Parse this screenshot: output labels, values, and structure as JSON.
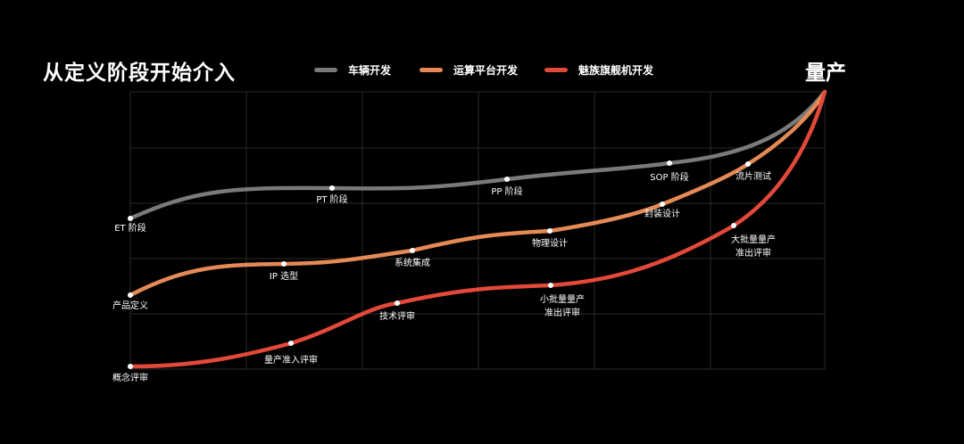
{
  "title": "从定义阶段开始介入",
  "end_label": "量产",
  "colors": {
    "grid": "#2a2a2a",
    "dot": "#ffffff"
  },
  "series": [
    {
      "name": "车辆开发",
      "color": "#7a7a7a",
      "milestones": [
        {
          "label": "ET 阶段"
        },
        {
          "label": "PT 阶段"
        },
        {
          "label": "PP 阶段"
        },
        {
          "label": "SOP 阶段"
        }
      ]
    },
    {
      "name": "运算平台开发",
      "color": "#e58a56",
      "milestones": [
        {
          "label": "产品定义"
        },
        {
          "label": "IP 选型"
        },
        {
          "label": "系统集成"
        },
        {
          "label": "物理设计"
        },
        {
          "label": "封装设计"
        },
        {
          "label": "流片测试"
        }
      ]
    },
    {
      "name": "魅族旗舰机开发",
      "color": "#e3493a",
      "milestones": [
        {
          "label": "概念评审"
        },
        {
          "label": "量产准入评审"
        },
        {
          "label": "技术评审"
        },
        {
          "label": "小批量量产\n准出评审"
        },
        {
          "label": "大批量量产\n准出评审"
        }
      ]
    }
  ]
}
